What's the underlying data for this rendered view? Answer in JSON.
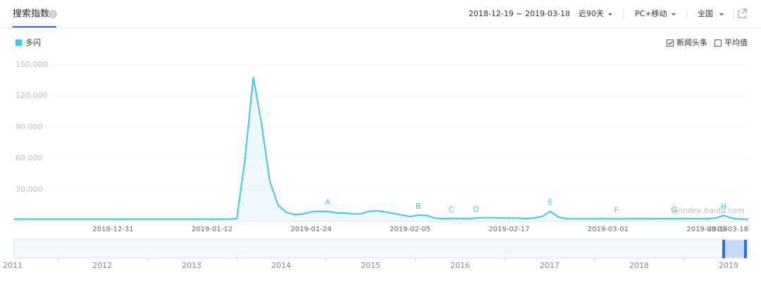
{
  "header": {
    "title": "搜索指数",
    "help": "?",
    "date_range": "2018-12-19 ~ 2019-03-18",
    "period": "近90天",
    "device": "PC+移动",
    "region": "全国"
  },
  "options": [
    "新闻头条",
    "平均值"
  ],
  "watermark": "@index.baidu.com",
  "chart_data": {
    "type": "line",
    "x": [
      "2018-12-19",
      "2019-01-14",
      "2019-01-15",
      "2019-01-16",
      "2019-01-17",
      "2019-01-18",
      "2019-01-19",
      "2019-01-20",
      "2019-01-21",
      "2019-01-22",
      "2019-01-23",
      "2019-01-24",
      "2019-01-25",
      "2019-01-26",
      "2019-01-27",
      "2019-01-28",
      "2019-01-29",
      "2019-01-30",
      "2019-01-31",
      "2019-02-01",
      "2019-02-02",
      "2019-02-03",
      "2019-02-04",
      "2019-02-05",
      "2019-02-06",
      "2019-02-07",
      "2019-02-08",
      "2019-02-09",
      "2019-02-10",
      "2019-02-11",
      "2019-02-12",
      "2019-02-13",
      "2019-02-14",
      "2019-02-15",
      "2019-02-16",
      "2019-02-17",
      "2019-02-18",
      "2019-02-19",
      "2019-02-20",
      "2019-02-21",
      "2019-02-22",
      "2019-02-23",
      "2019-02-24",
      "2019-03-02",
      "2019-03-09",
      "2019-03-13",
      "2019-03-14",
      "2019-03-15",
      "2019-03-16",
      "2019-03-17",
      "2019-03-18"
    ],
    "series": [
      {
        "name": "多闪",
        "color": "#3ec3ee",
        "values": [
          1500,
          1500,
          2000,
          60000,
          138000,
          93000,
          38000,
          15000,
          8000,
          6000,
          6500,
          8500,
          9000,
          9000,
          7500,
          7500,
          6500,
          6500,
          9000,
          9500,
          8500,
          7000,
          5500,
          4000,
          5500,
          5000,
          2500,
          2000,
          2200,
          2200,
          2000,
          2500,
          3000,
          3000,
          2500,
          2500,
          2500,
          2000,
          2500,
          4000,
          9000,
          3500,
          2000,
          1800,
          2000,
          2000,
          2500,
          5000,
          2500,
          1500,
          1500
        ]
      }
    ],
    "annotations": [
      {
        "label": "A",
        "x": "2019-01-26"
      },
      {
        "label": "B",
        "x": "2019-02-06"
      },
      {
        "label": "C",
        "x": "2019-02-10"
      },
      {
        "label": "D",
        "x": "2019-02-13"
      },
      {
        "label": "E",
        "x": "2019-02-22"
      },
      {
        "label": "F",
        "x": "2019-03-02"
      },
      {
        "label": "G",
        "x": "2019-03-09"
      },
      {
        "label": "H",
        "x": "2019-03-15"
      }
    ],
    "xlim": [
      "2018-12-19",
      "2019-03-18"
    ],
    "xticks": [
      "2018-12-31",
      "2019-01-12",
      "2019-01-24",
      "2019-02-05",
      "2019-02-17",
      "2019-03-01",
      "2019-03-13",
      "2019-03-18"
    ],
    "ylim": [
      0,
      150000
    ],
    "yticks": [
      {
        "value": 30000,
        "label": "30,000"
      },
      {
        "value": 60000,
        "label": "60,000"
      },
      {
        "value": 90000,
        "label": "90,000"
      },
      {
        "value": 120000,
        "label": "120,000"
      },
      {
        "value": 150000,
        "label": "150,000"
      }
    ],
    "grid": true
  },
  "overview": {
    "years": [
      "2011",
      "2012",
      "2013",
      "2014",
      "2015",
      "2016",
      "2017",
      "2018",
      "2019"
    ]
  }
}
